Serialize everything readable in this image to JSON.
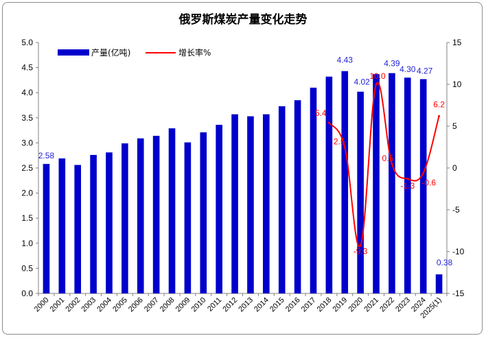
{
  "chart_data": {
    "type": "bar",
    "title": "俄罗斯煤炭产量变化走势",
    "categories": [
      "2000",
      "2001",
      "2002",
      "2003",
      "2004",
      "2005",
      "2006",
      "2007",
      "2008",
      "2009",
      "2010",
      "2011",
      "2012",
      "2013",
      "2014",
      "2015",
      "2016",
      "2017",
      "2018",
      "2019",
      "2020",
      "2021",
      "2022",
      "2023",
      "2024",
      "2025(1)"
    ],
    "series": [
      {
        "name": "产量(亿吨)",
        "type": "bar",
        "axis": "left",
        "color": "#0000cc",
        "values": [
          2.58,
          2.69,
          2.56,
          2.76,
          2.81,
          2.99,
          3.09,
          3.14,
          3.29,
          3.01,
          3.21,
          3.36,
          3.57,
          3.53,
          3.57,
          3.73,
          3.85,
          4.1,
          4.32,
          4.43,
          4.02,
          4.37,
          4.39,
          4.3,
          4.27,
          0.38
        ]
      },
      {
        "name": "增长率%",
        "type": "line",
        "axis": "right",
        "color": "#ff0000",
        "values": [
          null,
          null,
          null,
          null,
          null,
          null,
          null,
          null,
          null,
          null,
          null,
          null,
          null,
          null,
          null,
          null,
          null,
          null,
          5.4,
          2.5,
          -9.3,
          10.0,
          0.5,
          -1.3,
          -0.6,
          6.2
        ]
      }
    ],
    "bar_labels": [
      {
        "index": 0,
        "text": "2.58"
      },
      {
        "index": 19,
        "text": "4.43"
      },
      {
        "index": 20,
        "text": "4.02"
      },
      {
        "index": 22,
        "text": "4.39"
      },
      {
        "index": 23,
        "text": "4.30"
      },
      {
        "index": 24,
        "text": "4.27"
      },
      {
        "index": 25,
        "text": "0.38"
      }
    ],
    "line_labels": [
      {
        "index": 18,
        "text": "5.4"
      },
      {
        "index": 19,
        "text": "2.5"
      },
      {
        "index": 20,
        "text": "-9.3"
      },
      {
        "index": 21,
        "text": "10.0"
      },
      {
        "index": 22,
        "text": "0.5"
      },
      {
        "index": 23,
        "text": "-1.3"
      },
      {
        "index": 24,
        "text": "-0.6"
      },
      {
        "index": 25,
        "text": "6.2"
      }
    ],
    "ylim_left": [
      0,
      5
    ],
    "yticks_left": [
      "0.0",
      "0.5",
      "1.0",
      "1.5",
      "2.0",
      "2.5",
      "3.0",
      "3.5",
      "4.0",
      "4.5",
      "5.0"
    ],
    "ylim_right": [
      -15,
      15
    ],
    "yticks_right": [
      "-15",
      "-10",
      "-5",
      "0",
      "5",
      "10",
      "15"
    ],
    "legend_position": "top-left",
    "grid": false
  }
}
